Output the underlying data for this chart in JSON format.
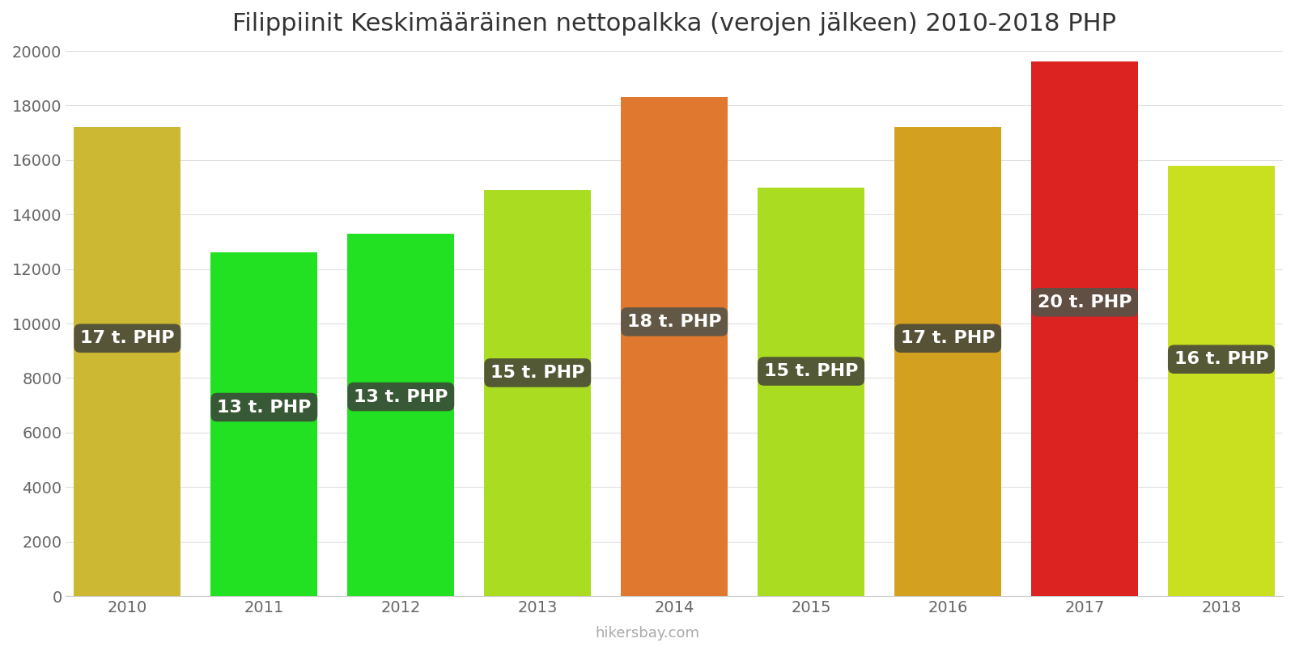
{
  "title": "Filippiinit Keskimääräinen nettopalkka (verojen jälkeen) 2010-2018 PHP",
  "years": [
    2010,
    2011,
    2012,
    2013,
    2014,
    2015,
    2016,
    2017,
    2018
  ],
  "values": [
    17200,
    12600,
    13300,
    14900,
    18300,
    15000,
    17200,
    19600,
    15800
  ],
  "labels": [
    "17 t. PHP",
    "13 t. PHP",
    "13 t. PHP",
    "15 t. PHP",
    "18 t. PHP",
    "15 t. PHP",
    "17 t. PHP",
    "20 t. PHP",
    "16 t. PHP"
  ],
  "bar_colors": [
    "#ccb833",
    "#22e022",
    "#22e022",
    "#aadd22",
    "#e07830",
    "#aadd22",
    "#d4a020",
    "#dd2222",
    "#c8e020"
  ],
  "background_color": "#ffffff",
  "title_fontsize": 22,
  "tick_fontsize": 14,
  "ylim": [
    0,
    20000
  ],
  "yticks": [
    0,
    2000,
    4000,
    6000,
    8000,
    10000,
    12000,
    14000,
    16000,
    18000,
    20000
  ],
  "watermark": "hikersbay.com",
  "label_box_color_dark": "#3d3d2a",
  "label_box_color_mid": "#555548",
  "label_text_color": "#ffffff",
  "label_fontsize": 16
}
